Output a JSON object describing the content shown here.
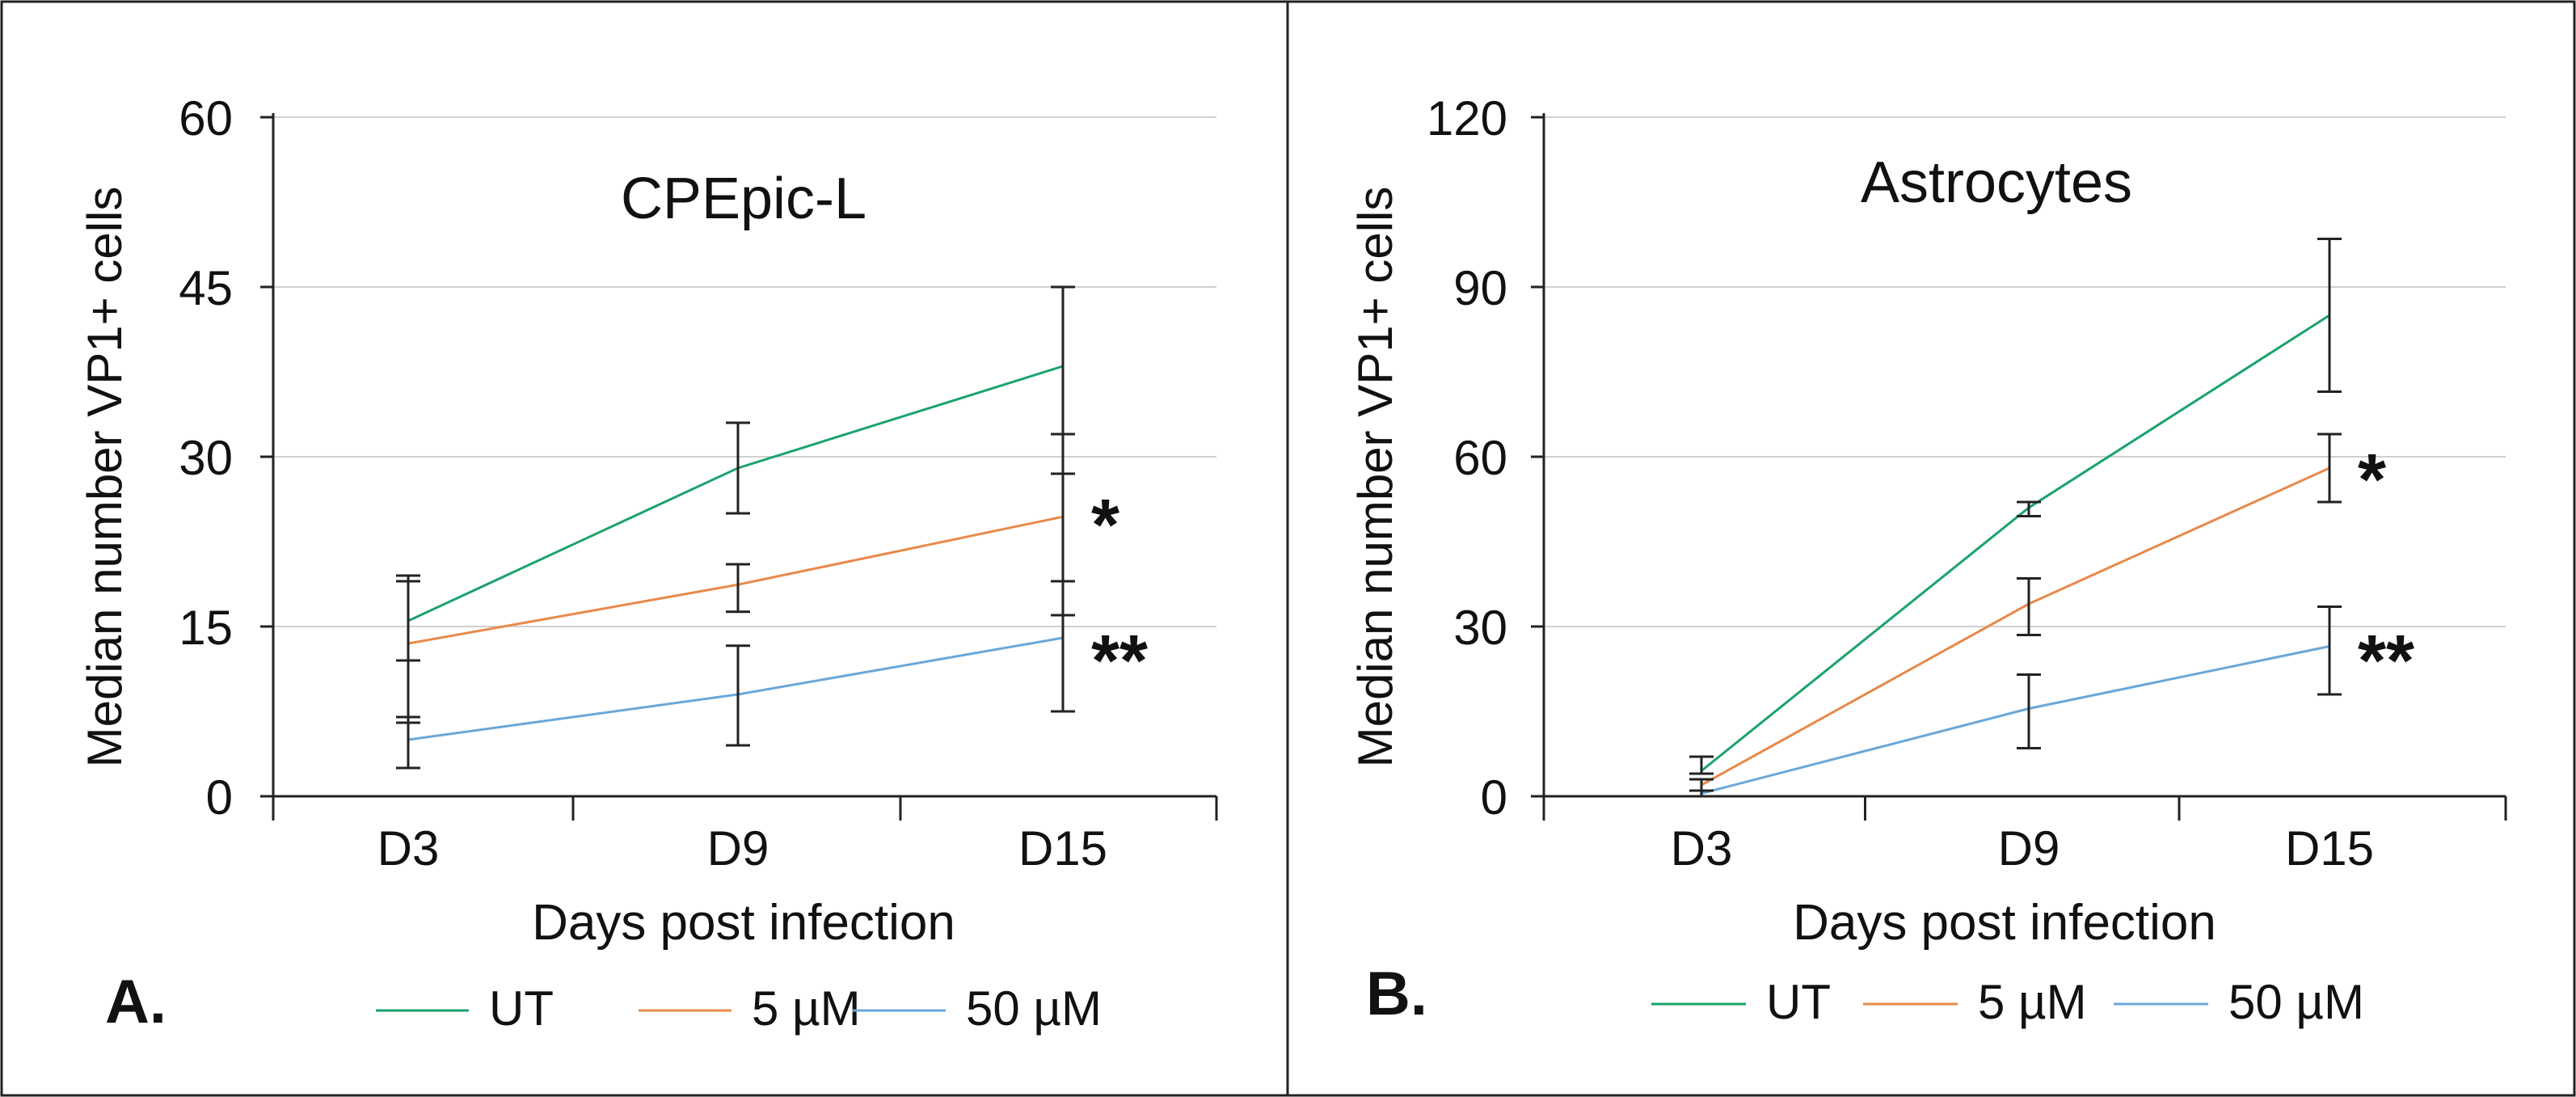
{
  "colors": {
    "UT": "#1aa36b",
    "5 µM": "#e8894a",
    "50 µM": "#6aa7d8",
    "grid": "#d0d0d0",
    "axis": "#222222"
  },
  "chart_data": [
    {
      "type": "line",
      "panel_label": "A.",
      "title": "CPEpic-L",
      "xlabel": "Days post infection",
      "ylabel": "Median number VP1+ cells",
      "ylim": [
        0,
        60
      ],
      "yticks": [
        "0",
        "15",
        "30",
        "45",
        "60"
      ],
      "categories": [
        "D3",
        "D9",
        "D15"
      ],
      "grid": true,
      "legend_position": "bottom",
      "series": [
        {
          "name": "UT",
          "values": [
            15.5,
            29,
            38
          ],
          "err_low": [
            7,
            25,
            28.5
          ],
          "err_high": [
            19.5,
            33,
            45
          ]
        },
        {
          "name": "5 µM",
          "values": [
            13.5,
            18.7,
            24.7
          ],
          "err_low": [
            6.5,
            16.3,
            16
          ],
          "err_high": [
            19,
            20.5,
            32
          ]
        },
        {
          "name": "50 µM",
          "values": [
            5,
            9,
            14
          ],
          "err_low": [
            2.5,
            4.5,
            7.5
          ],
          "err_high": [
            12,
            13.3,
            19
          ]
        }
      ],
      "annotations": [
        {
          "text": "*",
          "category": "D15",
          "y": 25
        },
        {
          "text": "**",
          "category": "D15",
          "y": 13
        }
      ]
    },
    {
      "type": "line",
      "panel_label": "B.",
      "title": "Astrocytes",
      "xlabel": "Days post infection",
      "ylabel": "Median number VP1+ cells",
      "ylim": [
        0,
        120
      ],
      "yticks": [
        "0",
        "30",
        "60",
        "90",
        "120"
      ],
      "categories": [
        "D3",
        "D9",
        "D15"
      ],
      "grid": true,
      "legend_position": "bottom",
      "series": [
        {
          "name": "UT",
          "values": [
            4.5,
            51,
            85
          ],
          "err_low": [
            4,
            49.5,
            71.5
          ],
          "err_high": [
            7,
            52,
            98.5
          ]
        },
        {
          "name": "5 µM",
          "values": [
            2,
            34,
            58
          ],
          "err_low": [
            1,
            28.5,
            52
          ],
          "err_high": [
            3,
            38.5,
            64
          ]
        },
        {
          "name": "50 µM",
          "values": [
            0.5,
            15.5,
            26.5
          ],
          "err_low": [
            0,
            8.5,
            18
          ],
          "err_high": [
            1,
            21.5,
            33.5
          ]
        }
      ],
      "annotations": [
        {
          "text": "*",
          "category": "D15",
          "y": 58
        },
        {
          "text": "**",
          "category": "D15",
          "y": 26
        }
      ]
    }
  ]
}
